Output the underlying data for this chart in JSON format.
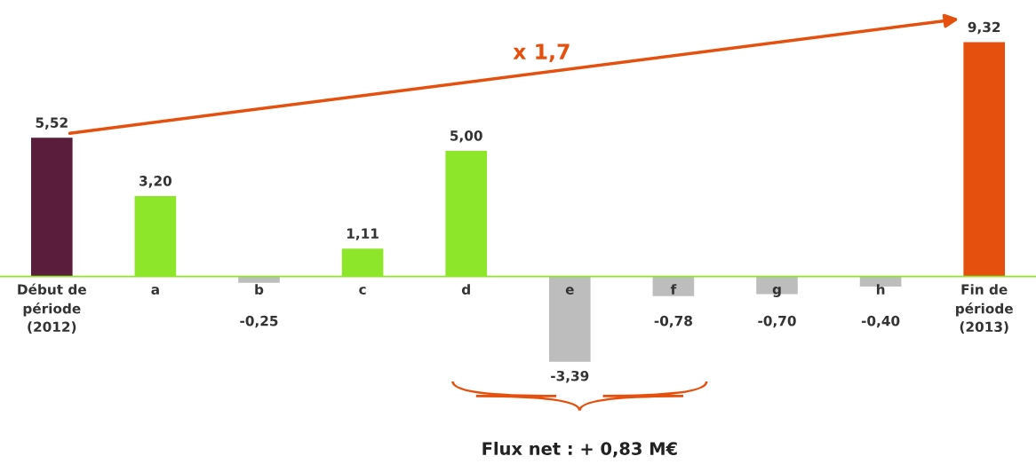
{
  "chart_data": {
    "type": "bar",
    "categories": [
      "Début de\npériode\n(2012)",
      "a",
      "b",
      "c",
      "d",
      "e",
      "f",
      "g",
      "h",
      "Fin de\npériode\n(2013)"
    ],
    "values": [
      5.52,
      3.2,
      -0.25,
      1.11,
      5.0,
      -3.39,
      -0.78,
      -0.7,
      -0.4,
      9.32
    ],
    "value_labels": [
      "5,52",
      "3,20",
      "-0,25",
      "1,11",
      "5,00",
      "-3,39",
      "-0,78",
      "-0,70",
      "-0,40",
      "9,32"
    ],
    "colors": [
      "#5a1d3c",
      "#8ee62a",
      "#bdbdbd",
      "#8ee62a",
      "#8ee62a",
      "#bdbdbd",
      "#bdbdbd",
      "#bdbdbd",
      "#bdbdbd",
      "#e5500f"
    ],
    "annotations": [
      "x 1,7",
      "Flux net : + 0,83 M€"
    ]
  }
}
